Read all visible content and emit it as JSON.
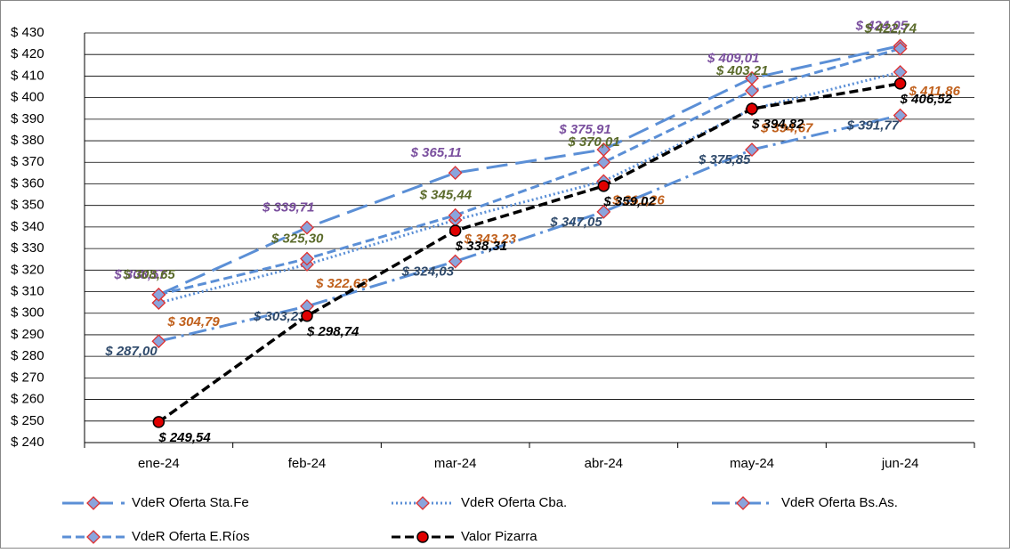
{
  "chart_data": {
    "type": "line",
    "categories": [
      "ene-24",
      "feb-24",
      "mar-24",
      "abr-24",
      "may-24",
      "jun-24"
    ],
    "ylim": [
      240,
      430
    ],
    "yticks": [
      {
        "value": 240,
        "label": "$ 240"
      },
      {
        "value": 250,
        "label": "$ 250"
      },
      {
        "value": 260,
        "label": "$ 260"
      },
      {
        "value": 270,
        "label": "$ 270"
      },
      {
        "value": 280,
        "label": "$ 280"
      },
      {
        "value": 290,
        "label": "$ 290"
      },
      {
        "value": 300,
        "label": "$ 300"
      },
      {
        "value": 310,
        "label": "$ 310"
      },
      {
        "value": 320,
        "label": "$ 320"
      },
      {
        "value": 330,
        "label": "$ 330"
      },
      {
        "value": 340,
        "label": "$ 340"
      },
      {
        "value": 350,
        "label": "$ 350"
      },
      {
        "value": 360,
        "label": "$ 360"
      },
      {
        "value": 370,
        "label": "$ 370"
      },
      {
        "value": 380,
        "label": "$ 380"
      },
      {
        "value": 390,
        "label": "$ 390"
      },
      {
        "value": 400,
        "label": "$ 400"
      },
      {
        "value": 410,
        "label": "$ 410"
      },
      {
        "value": 420,
        "label": "$ 420"
      },
      {
        "value": 430,
        "label": "$ 430"
      }
    ],
    "grid": true,
    "legend": "bottom",
    "series": [
      {
        "name": "VdeR Oferta Sta.Fe",
        "color": "#5b8fd6",
        "label_color": "#7a4f9e",
        "dash": "long-dash",
        "marker": "diamond",
        "values": [
          308.57,
          339.71,
          365.11,
          375.91,
          409.01,
          424.05
        ],
        "value_labels": [
          "$ 308,57",
          "$ 339,71",
          "$ 365,11",
          "$ 375,91",
          "$ 409,01",
          "$ 424,05"
        ]
      },
      {
        "name": "VdeR Oferta Cba.",
        "color": "#5b8fd6",
        "label_color": "#c0601c",
        "dash": "dot",
        "marker": "diamond",
        "values": [
          304.79,
          322.63,
          343.23,
          361.26,
          394.67,
          411.86
        ],
        "value_labels": [
          "$ 304,79",
          "$ 322,63",
          "$ 343,23",
          "$ 361,26",
          "$ 394,67",
          "$ 411,86"
        ]
      },
      {
        "name": "VdeR Oferta Bs.As.",
        "color": "#5b8fd6",
        "label_color": "#2f4a6b",
        "dash": "dash-dot",
        "marker": "diamond",
        "values": [
          287.0,
          303.23,
          324.03,
          347.05,
          375.85,
          391.77
        ],
        "value_labels": [
          "$ 287,00",
          "$ 303,23",
          "$ 324,03",
          "$ 347,05",
          "$ 375,85",
          "$ 391,77"
        ]
      },
      {
        "name": "VdeR Oferta E.Ríos",
        "color": "#5b8fd6",
        "label_color": "#5b6b2b",
        "dash": "dash",
        "marker": "diamond",
        "values": [
          308.65,
          325.3,
          345.44,
          370.01,
          403.21,
          422.74
        ],
        "value_labels": [
          "$ 308,65",
          "$ 325,30",
          "$ 345,44",
          "$ 370,01",
          "$ 403,21",
          "$ 422,74"
        ]
      },
      {
        "name": "Valor Pizarra",
        "color": "#000000",
        "label_color": "#000000",
        "dash": "dash",
        "marker": "circle",
        "values": [
          249.54,
          298.74,
          338.31,
          359.02,
          394.82,
          406.52
        ],
        "value_labels": [
          "$ 249,54",
          "$ 298,74",
          "$ 338,31",
          "$ 359,02",
          "$ 394,82",
          "$ 406,52"
        ]
      }
    ]
  }
}
